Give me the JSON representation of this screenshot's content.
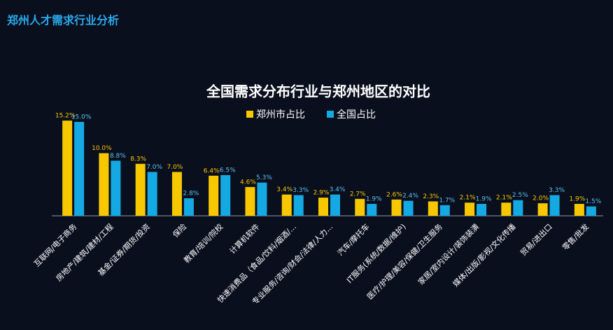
{
  "header": {
    "title": "郑州人才需求行业分析"
  },
  "chart_data": {
    "type": "bar",
    "title": "全国需求分布行业与郑州地区的对比",
    "categories": [
      "互联网/电子商务",
      "房地产/建筑/建材/工程",
      "基金/证券/期货/投资",
      "保险",
      "教育/培训/院校",
      "计算机软件",
      "快速消费品（食品/饮料/烟酒/...",
      "专业服务/咨询/财会/法律/人力...",
      "汽车/摩托车",
      "IT服务(系统/数据/维护)",
      "医疗/护理/美容/保健/卫生服务",
      "家居/室内设计/装饰装潢",
      "媒体/出版/影视/文化传播",
      "贸易/进出口",
      "零售/批发"
    ],
    "series": [
      {
        "name": "郑州市占比",
        "color": "#f7c800",
        "values": [
          15.2,
          10.0,
          8.3,
          7.0,
          6.4,
          4.6,
          3.4,
          2.9,
          2.7,
          2.6,
          2.3,
          2.1,
          2.1,
          2.0,
          1.9
        ],
        "value_labels": [
          "15.2%",
          "10.0%",
          "8.3%",
          "7.0%",
          "6.4%",
          "4.6%",
          "3.4%",
          "2.9%",
          "2.7%",
          "2.6%",
          "2.3%",
          "2.1%",
          "2.1%",
          "2.0%",
          "1.9%"
        ]
      },
      {
        "name": "全国占比",
        "color": "#14a9e2",
        "values": [
          15.0,
          8.8,
          7.0,
          2.8,
          6.5,
          5.3,
          3.3,
          3.4,
          1.9,
          2.4,
          1.7,
          1.9,
          2.5,
          3.3,
          1.5
        ],
        "value_labels": [
          "15.0%",
          "8.8%",
          "7.0%",
          "2.8%",
          "6.5%",
          "5.3%",
          "3.3%",
          "3.4%",
          "1.9%",
          "2.4%",
          "1.7%",
          "1.9%",
          "2.5%",
          "3.3%",
          "1.5%"
        ]
      }
    ],
    "ylim": [
      0,
      16
    ]
  }
}
